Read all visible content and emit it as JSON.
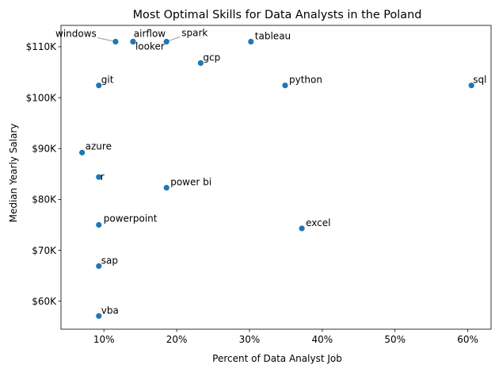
{
  "chart_data": {
    "type": "scatter",
    "title": "Most Optimal Skills for Data Analysts in the Poland",
    "xlabel": "Percent of Data Analyst Job",
    "ylabel": "Median Yearly Salary",
    "xlim": [
      4.1,
      63.2
    ],
    "ylim": [
      54500,
      114200
    ],
    "x_ticks": [
      10,
      20,
      30,
      40,
      50,
      60
    ],
    "x_tick_labels": [
      "10%",
      "20%",
      "30%",
      "40%",
      "50%",
      "60%"
    ],
    "y_ticks": [
      60000,
      70000,
      80000,
      90000,
      100000,
      110000
    ],
    "y_tick_labels": [
      "$60K",
      "$70K",
      "$80K",
      "$90K",
      "$100K",
      "$110K"
    ],
    "grid": false,
    "legend": "none",
    "marker_color": "#1f77b4",
    "points": [
      {
        "label": "windows",
        "x": 11.6,
        "y": 111000
      },
      {
        "label": "airflow",
        "x": 14.0,
        "y": 111000
      },
      {
        "label": "looker",
        "x": 14.0,
        "y": 111000
      },
      {
        "label": "spark",
        "x": 18.6,
        "y": 111000
      },
      {
        "label": "tableau",
        "x": 30.2,
        "y": 111000
      },
      {
        "label": "gcp",
        "x": 23.3,
        "y": 106800
      },
      {
        "label": "git",
        "x": 9.3,
        "y": 102400
      },
      {
        "label": "python",
        "x": 34.9,
        "y": 102400
      },
      {
        "label": "sql",
        "x": 60.5,
        "y": 102400
      },
      {
        "label": "azure",
        "x": 7.0,
        "y": 89200
      },
      {
        "label": "r",
        "x": 9.3,
        "y": 84400
      },
      {
        "label": "power bi",
        "x": 18.6,
        "y": 82300
      },
      {
        "label": "powerpoint",
        "x": 9.3,
        "y": 75000
      },
      {
        "label": "excel",
        "x": 37.2,
        "y": 74300
      },
      {
        "label": "sap",
        "x": 9.3,
        "y": 66900
      },
      {
        "label": "vba",
        "x": 9.3,
        "y": 57100
      }
    ]
  }
}
